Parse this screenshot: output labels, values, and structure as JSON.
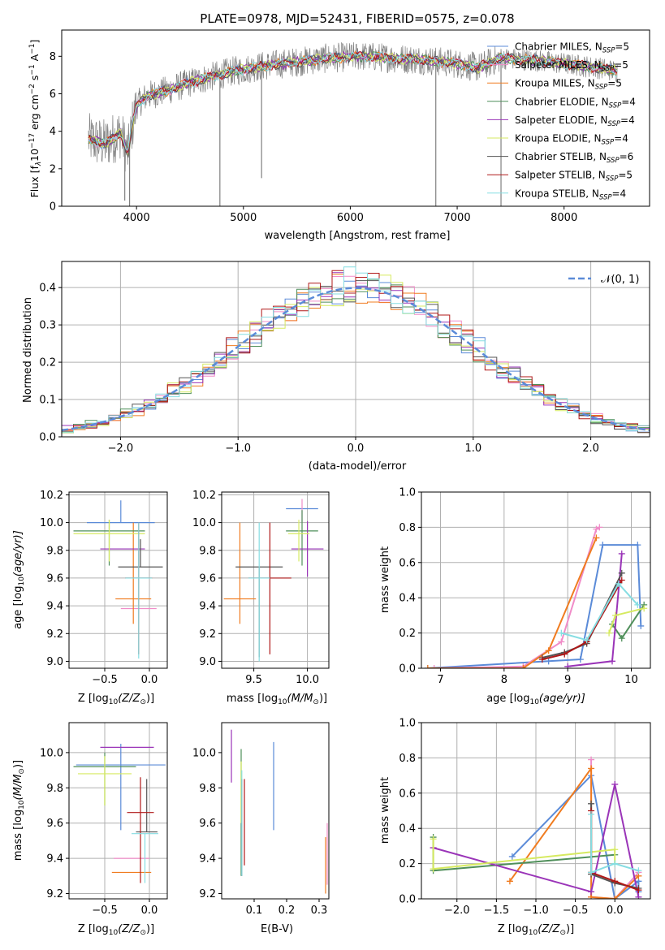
{
  "colors": {
    "chabrier_miles": "#5b8bd8",
    "salpeter_miles": "#f08cc8",
    "kroupa_miles": "#f07c20",
    "chabrier_elodie": "#4f8f5a",
    "salpeter_elodie": "#9a34b8",
    "kroupa_elodie": "#d6ea60",
    "chabrier_stelib": "#555555",
    "salpeter_stelib": "#b01818",
    "kroupa_stelib": "#86dde2",
    "normal": "#5b8bd8",
    "grid": "#b0b0b0",
    "spectrum": "#808080"
  },
  "chart_data": [
    {
      "type": "line",
      "title": "PLATE=0978, MJD=52431, FIBERID=0575, z=0.078",
      "xlabel": "wavelength [Angstrom, rest frame]",
      "ylabel_parts": {
        "pre": "Flux [f",
        "sub1": "λ",
        "mid": "10",
        "sup1": "−17",
        "post": " erg cm",
        "sup2": "−2",
        "mid2": " s",
        "sup3": "−1",
        "mid3": " A",
        "sup4": "−1",
        "end": "]"
      },
      "xlim": [
        3300,
        8800
      ],
      "ylim": [
        0,
        9.4
      ],
      "xticks": [
        4000,
        5000,
        6000,
        7000,
        8000
      ],
      "yticks": [
        0,
        2,
        4,
        6,
        8
      ],
      "grid": false,
      "legend_position": "right",
      "continuum": [
        [
          3550,
          3.6
        ],
        [
          3700,
          3.3
        ],
        [
          3850,
          3.9
        ],
        [
          3920,
          2.8
        ],
        [
          3960,
          4.3
        ],
        [
          4000,
          5.4
        ],
        [
          4100,
          5.9
        ],
        [
          4300,
          6.2
        ],
        [
          4500,
          6.6
        ],
        [
          4700,
          6.9
        ],
        [
          4900,
          7.2
        ],
        [
          5200,
          7.5
        ],
        [
          5500,
          7.7
        ],
        [
          5800,
          7.9
        ],
        [
          6100,
          8.0
        ],
        [
          6400,
          7.9
        ],
        [
          6700,
          7.8
        ],
        [
          7000,
          7.6
        ],
        [
          7200,
          7.4
        ],
        [
          7400,
          7.9
        ],
        [
          7700,
          7.8
        ],
        [
          8000,
          7.6
        ],
        [
          8300,
          7.4
        ],
        [
          8500,
          7.2
        ]
      ],
      "legend": [
        {
          "name_pre": "Chabrier MILES, N",
          "name_sub": "SSP",
          "name_post": "=5",
          "color_key": "chabrier_miles"
        },
        {
          "name_pre": "Salpeter MILES, N",
          "name_sub": "SSP",
          "name_post": "=5",
          "color_key": "salpeter_miles"
        },
        {
          "name_pre": "Kroupa MILES, N",
          "name_sub": "SSP",
          "name_post": "=5",
          "color_key": "kroupa_miles"
        },
        {
          "name_pre": "Chabrier ELODIE, N",
          "name_sub": "SSP",
          "name_post": "=4",
          "color_key": "chabrier_elodie"
        },
        {
          "name_pre": "Salpeter ELODIE, N",
          "name_sub": "SSP",
          "name_post": "=4",
          "color_key": "salpeter_elodie"
        },
        {
          "name_pre": "Kroupa ELODIE, N",
          "name_sub": "SSP",
          "name_post": "=4",
          "color_key": "kroupa_elodie"
        },
        {
          "name_pre": "Chabrier STELIB, N",
          "name_sub": "SSP",
          "name_post": "=6",
          "color_key": "chabrier_stelib"
        },
        {
          "name_pre": "Salpeter STELIB, N",
          "name_sub": "SSP",
          "name_post": "=5",
          "color_key": "salpeter_stelib"
        },
        {
          "name_pre": "Kroupa STELIB, N",
          "name_sub": "SSP",
          "name_post": "=4",
          "color_key": "kroupa_stelib"
        }
      ]
    },
    {
      "type": "line",
      "xlabel": "(data-model)/error",
      "ylabel": "Normed distribution",
      "xlim": [
        -2.5,
        2.5
      ],
      "ylim": [
        0,
        0.47
      ],
      "xticks": [
        -2,
        -1,
        0,
        1,
        2
      ],
      "yticks": [
        0.0,
        0.1,
        0.2,
        0.3,
        0.4
      ],
      "grid": true,
      "legend_position": "top-right",
      "legend_label": "𝒩(0, 1)",
      "normal_mu": 0,
      "normal_sigma": 1,
      "hist_bin_width": 0.1
    },
    {
      "type": "scatter",
      "xlabel_pre": "Z [log",
      "xlabel_sub": "10",
      "xlabel_post": "(Z/Z",
      "xlabel_sub2": "⊙",
      "xlabel_end": ")]",
      "ylabel_pre": "age  [log",
      "ylabel_sub": "10",
      "ylabel_post": "(age/yr)]",
      "xlim": [
        -0.9,
        0.2
      ],
      "ylim": [
        8.95,
        10.22
      ],
      "xticks": [
        -0.5,
        0.0
      ],
      "yticks": [
        9.0,
        9.2,
        9.4,
        9.6,
        9.8,
        10.0,
        10.2
      ],
      "grid": true,
      "points": [
        {
          "color_key": "chabrier_miles",
          "x": -0.32,
          "y": 10.0,
          "xerr": 0.38,
          "yerr_lo": 0.0,
          "yerr_hi": 0.16
        },
        {
          "color_key": "salpeter_miles",
          "x": -0.12,
          "y": 9.38,
          "xerr": 0.2,
          "yerr_lo": 0.0,
          "yerr_hi": 0.0
        },
        {
          "color_key": "kroupa_miles",
          "x": -0.18,
          "y": 9.45,
          "xerr": 0.2,
          "yerr_lo": 0.18,
          "yerr_hi": 0.55
        },
        {
          "color_key": "chabrier_elodie",
          "x": -0.45,
          "y": 9.94,
          "xerr": 0.4,
          "yerr_lo": 0.25,
          "yerr_hi": 0.08
        },
        {
          "color_key": "salpeter_elodie",
          "x": -0.3,
          "y": 9.81,
          "xerr": 0.25,
          "yerr_lo": 0.0,
          "yerr_hi": 0.0
        },
        {
          "color_key": "kroupa_elodie",
          "x": -0.45,
          "y": 9.92,
          "xerr": 0.4,
          "yerr_lo": 0.2,
          "yerr_hi": 0.1
        },
        {
          "color_key": "chabrier_stelib",
          "x": -0.1,
          "y": 9.68,
          "xerr": 0.25,
          "yerr_lo": 0.0,
          "yerr_hi": 0.2
        },
        {
          "color_key": "salpeter_stelib",
          "x": -0.12,
          "y": 9.6,
          "xerr": 0.15,
          "yerr_lo": 0.55,
          "yerr_hi": 0.4
        },
        {
          "color_key": "kroupa_stelib",
          "x": -0.12,
          "y": 9.6,
          "xerr": 0.15,
          "yerr_lo": 0.58,
          "yerr_hi": 0.4
        }
      ]
    },
    {
      "type": "scatter",
      "xlabel_pre": "mass [log",
      "xlabel_sub": "10",
      "xlabel_post": "(M/M",
      "xlabel_sub2": "⊙",
      "xlabel_end": ")]",
      "xlim": [
        9.2,
        10.2
      ],
      "ylim": [
        8.95,
        10.22
      ],
      "xticks": [
        9.5,
        10.0
      ],
      "yticks": [
        9.0,
        9.2,
        9.4,
        9.6,
        9.8,
        10.0,
        10.2
      ],
      "grid": true,
      "points": [
        {
          "color_key": "chabrier_miles",
          "x": 9.95,
          "y": 10.1,
          "xerr": 0.15,
          "yerr_lo": 0.0,
          "yerr_hi": 0.0
        },
        {
          "color_key": "salpeter_miles",
          "x": 9.95,
          "y": 10.0,
          "xerr": 0.0,
          "yerr_lo": 0.0,
          "yerr_hi": 0.17
        },
        {
          "color_key": "kroupa_miles",
          "x": 9.37,
          "y": 9.45,
          "xerr": 0.15,
          "yerr_lo": 0.18,
          "yerr_hi": 0.55
        },
        {
          "color_key": "chabrier_elodie",
          "x": 9.95,
          "y": 9.94,
          "xerr": 0.15,
          "yerr_lo": 0.25,
          "yerr_hi": 0.15
        },
        {
          "color_key": "salpeter_elodie",
          "x": 10.0,
          "y": 9.81,
          "xerr": 0.15,
          "yerr_lo": 0.2,
          "yerr_hi": 0.2
        },
        {
          "color_key": "kroupa_elodie",
          "x": 9.92,
          "y": 9.92,
          "xerr": 0.1,
          "yerr_lo": 0.2,
          "yerr_hi": 0.1
        },
        {
          "color_key": "chabrier_stelib",
          "x": 9.55,
          "y": 9.68,
          "xerr": 0.22,
          "yerr_lo": 0.65,
          "yerr_hi": 0.0
        },
        {
          "color_key": "salpeter_stelib",
          "x": 9.65,
          "y": 9.6,
          "xerr": 0.2,
          "yerr_lo": 0.55,
          "yerr_hi": 0.4
        },
        {
          "color_key": "kroupa_stelib",
          "x": 9.55,
          "y": 9.6,
          "xerr": 0.1,
          "yerr_lo": 0.6,
          "yerr_hi": 0.4
        }
      ]
    },
    {
      "type": "line",
      "xlabel_pre": "age  [log",
      "xlabel_sub": "10",
      "xlabel_post": "(age/yr)]",
      "ylabel": "mass weight",
      "xlim": [
        6.7,
        10.3
      ],
      "ylim": [
        0,
        1.0
      ],
      "xticks": [
        7,
        8,
        9,
        10
      ],
      "yticks": [
        0.0,
        0.2,
        0.4,
        0.6,
        0.8,
        1.0
      ],
      "grid": true,
      "series": [
        {
          "color_key": "chabrier_miles",
          "x": [
            6.8,
            8.7,
            9.2,
            9.55,
            10.1,
            10.15
          ],
          "y": [
            0.0,
            0.04,
            0.05,
            0.7,
            0.7,
            0.24
          ]
        },
        {
          "color_key": "salpeter_miles",
          "x": [
            6.9,
            8.3,
            8.9,
            9.45,
            9.5
          ],
          "y": [
            0.0,
            0.01,
            0.15,
            0.79,
            0.8
          ]
        },
        {
          "color_key": "kroupa_miles",
          "x": [
            6.8,
            8.3,
            8.7,
            9.45
          ],
          "y": [
            0.0,
            0.0,
            0.1,
            0.74
          ]
        },
        {
          "color_key": "chabrier_elodie",
          "x": [
            9.7,
            9.85,
            10.2
          ],
          "y": [
            0.25,
            0.17,
            0.36
          ]
        },
        {
          "color_key": "salpeter_elodie",
          "x": [
            9.0,
            9.7,
            9.85
          ],
          "y": [
            0.01,
            0.04,
            0.65
          ]
        },
        {
          "color_key": "kroupa_elodie",
          "x": [
            9.65,
            9.75,
            10.2
          ],
          "y": [
            0.2,
            0.3,
            0.34
          ]
        },
        {
          "color_key": "chabrier_stelib",
          "x": [
            8.6,
            8.95,
            9.3,
            9.85
          ],
          "y": [
            0.06,
            0.09,
            0.14,
            0.54
          ]
        },
        {
          "color_key": "salpeter_stelib",
          "x": [
            8.6,
            8.95,
            9.3,
            9.85
          ],
          "y": [
            0.05,
            0.08,
            0.15,
            0.5
          ]
        },
        {
          "color_key": "kroupa_stelib",
          "x": [
            8.9,
            9.3,
            9.8,
            10.1
          ],
          "y": [
            0.2,
            0.16,
            0.48,
            0.36
          ]
        }
      ]
    },
    {
      "type": "scatter",
      "xlabel_pre": "Z [log",
      "xlabel_sub": "10",
      "xlabel_post": "(Z/Z",
      "xlabel_sub2": "⊙",
      "xlabel_end": ")]",
      "ylabel_pre": "mass [log",
      "ylabel_sub": "10",
      "ylabel_post": "(M/M",
      "ylabel_sub2": "⊙",
      "ylabel_end": ")]",
      "xlim": [
        -0.9,
        0.2
      ],
      "ylim": [
        9.17,
        10.17
      ],
      "xticks": [
        -0.5,
        0.0
      ],
      "yticks": [
        9.2,
        9.4,
        9.6,
        9.8,
        10.0
      ],
      "grid": true,
      "points": [
        {
          "color_key": "chabrier_miles",
          "x": -0.32,
          "y": 9.93,
          "xerr": 0.5,
          "yerr_lo": 0.37,
          "yerr_hi": 0.12
        },
        {
          "color_key": "salpeter_miles",
          "x": -0.2,
          "y": 9.4,
          "xerr": 0.2,
          "yerr_lo": 0.0,
          "yerr_hi": 0.0
        },
        {
          "color_key": "kroupa_miles",
          "x": -0.2,
          "y": 9.32,
          "xerr": 0.22,
          "yerr_lo": 0.0,
          "yerr_hi": 0.0
        },
        {
          "color_key": "chabrier_elodie",
          "x": -0.5,
          "y": 9.92,
          "xerr": 0.35,
          "yerr_lo": 0.22,
          "yerr_hi": 0.08
        },
        {
          "color_key": "salpeter_elodie",
          "x": -0.25,
          "y": 10.03,
          "xerr": 0.3,
          "yerr_lo": 0.0,
          "yerr_hi": 0.0
        },
        {
          "color_key": "kroupa_elodie",
          "x": -0.5,
          "y": 9.88,
          "xerr": 0.3,
          "yerr_lo": 0.18,
          "yerr_hi": 0.1
        },
        {
          "color_key": "chabrier_stelib",
          "x": -0.03,
          "y": 9.55,
          "xerr": 0.12,
          "yerr_lo": 0.0,
          "yerr_hi": 0.3
        },
        {
          "color_key": "salpeter_stelib",
          "x": -0.1,
          "y": 9.66,
          "xerr": 0.15,
          "yerr_lo": 0.4,
          "yerr_hi": 0.2
        },
        {
          "color_key": "kroupa_stelib",
          "x": -0.05,
          "y": 9.54,
          "xerr": 0.15,
          "yerr_lo": 0.28,
          "yerr_hi": 0.0
        }
      ]
    },
    {
      "type": "scatter",
      "xlabel": "E(B-V)",
      "xlim": [
        0,
        0.33
      ],
      "ylim": [
        9.17,
        10.17
      ],
      "xticks": [
        0.1,
        0.2,
        0.3
      ],
      "yticks": [
        9.2,
        9.4,
        9.6,
        9.8,
        10.0
      ],
      "grid": false,
      "points": [
        {
          "color_key": "chabrier_miles",
          "x": 0.16,
          "y": 9.8,
          "xerr": 0,
          "yerr_lo": 0.24,
          "yerr_hi": 0.26
        },
        {
          "color_key": "salpeter_miles",
          "x": 0.325,
          "y": 9.45,
          "xerr": 0,
          "yerr_lo": 0.2,
          "yerr_hi": 0.15
        },
        {
          "color_key": "kroupa_miles",
          "x": 0.32,
          "y": 9.32,
          "xerr": 0,
          "yerr_lo": 0.12,
          "yerr_hi": 0.2
        },
        {
          "color_key": "chabrier_elodie",
          "x": 0.06,
          "y": 9.68,
          "xerr": 0,
          "yerr_lo": 0.38,
          "yerr_hi": 0.34
        },
        {
          "color_key": "salpeter_elodie",
          "x": 0.03,
          "y": 9.98,
          "xerr": 0,
          "yerr_lo": 0.15,
          "yerr_hi": 0.15
        },
        {
          "color_key": "kroupa_elodie",
          "x": 0.06,
          "y": 9.8,
          "xerr": 0,
          "yerr_lo": 0.2,
          "yerr_hi": 0.15
        },
        {
          "color_key": "chabrier_stelib",
          "x": 0.062,
          "y": 9.55,
          "xerr": 0,
          "yerr_lo": 0.25,
          "yerr_hi": 0.3
        },
        {
          "color_key": "salpeter_stelib",
          "x": 0.07,
          "y": 9.62,
          "xerr": 0,
          "yerr_lo": 0.26,
          "yerr_hi": 0.23
        },
        {
          "color_key": "kroupa_stelib",
          "x": 0.062,
          "y": 9.6,
          "xerr": 0,
          "yerr_lo": 0.3,
          "yerr_hi": 0.3
        }
      ]
    },
    {
      "type": "line",
      "xlabel_pre": "Z [log",
      "xlabel_sub": "10",
      "xlabel_post": "(Z/Z",
      "xlabel_sub2": "⊙",
      "xlabel_end": ")]",
      "ylabel": "mass weight",
      "xlim": [
        -2.45,
        0.45
      ],
      "ylim": [
        0,
        1.0
      ],
      "xticks": [
        -2.0,
        -1.5,
        -1.0,
        -0.5,
        0.0
      ],
      "yticks": [
        0.0,
        0.2,
        0.4,
        0.6,
        0.8,
        1.0
      ],
      "grid": true,
      "series": [
        {
          "color_key": "chabrier_miles",
          "x": [
            -1.3,
            -0.3,
            0.0,
            0.3,
            0.3
          ],
          "y": [
            0.24,
            0.7,
            0.0,
            0.1,
            0.04
          ]
        },
        {
          "color_key": "salpeter_miles",
          "x": [
            -0.3,
            -0.3,
            0.0,
            0.3
          ],
          "y": [
            0.79,
            0.01,
            0.0,
            0.15
          ]
        },
        {
          "color_key": "kroupa_miles",
          "x": [
            -1.33,
            -0.3,
            -0.3,
            0.0,
            0.3
          ],
          "y": [
            0.1,
            0.74,
            0.01,
            0.0,
            0.13
          ]
        },
        {
          "color_key": "chabrier_elodie",
          "x": [
            -2.3,
            -2.3,
            0.0
          ],
          "y": [
            0.35,
            0.16,
            0.25
          ]
        },
        {
          "color_key": "salpeter_elodie",
          "x": [
            -2.3,
            -0.3,
            0.0,
            0.3
          ],
          "y": [
            0.29,
            0.04,
            0.65,
            0.01
          ]
        },
        {
          "color_key": "kroupa_elodie",
          "x": [
            -2.3,
            -2.3,
            0.0,
            0.0
          ],
          "y": [
            0.34,
            0.17,
            0.28,
            0.2
          ]
        },
        {
          "color_key": "chabrier_stelib",
          "x": [
            -0.3,
            -0.3,
            0.0,
            0.3
          ],
          "y": [
            0.54,
            0.14,
            0.09,
            0.06
          ]
        },
        {
          "color_key": "salpeter_stelib",
          "x": [
            -0.3,
            -0.3,
            0.0,
            0.3
          ],
          "y": [
            0.5,
            0.15,
            0.1,
            0.05
          ]
        },
        {
          "color_key": "kroupa_stelib",
          "x": [
            -0.3,
            -0.3,
            0.0,
            0.3
          ],
          "y": [
            0.48,
            0.15,
            0.2,
            0.16
          ]
        }
      ]
    }
  ]
}
